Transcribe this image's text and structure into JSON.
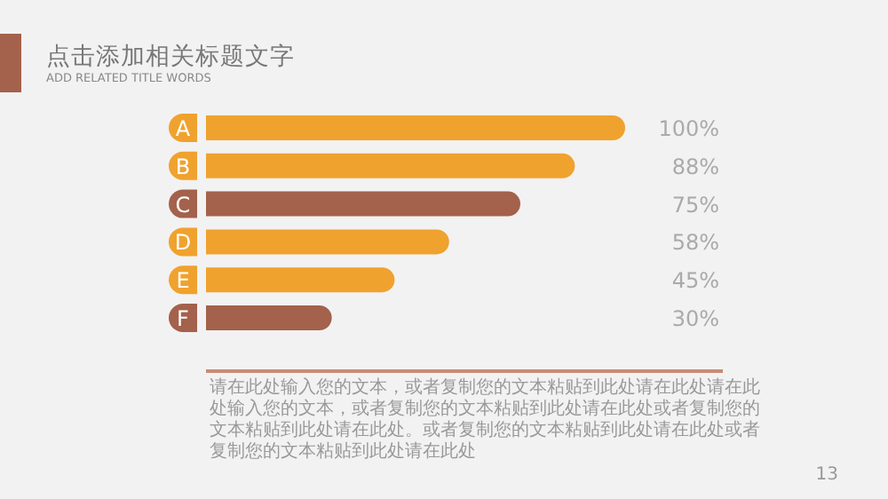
{
  "chart_data": {
    "type": "bar",
    "orientation": "horizontal",
    "title": "点击添加相关标题文字",
    "subtitle": "ADD RELATED TITLE WORDS",
    "categories": [
      "A",
      "B",
      "C",
      "D",
      "E",
      "F"
    ],
    "values": [
      100,
      88,
      75,
      58,
      45,
      30
    ],
    "colors": [
      "#f0a22e",
      "#f0a22e",
      "#a4614b",
      "#f0a22e",
      "#f0a22e",
      "#a4614b"
    ],
    "value_labels": [
      "100%",
      "88%",
      "75%",
      "58%",
      "45%",
      "30%"
    ],
    "annotations": [
      "请在此处输入您的文本，或者复制您的文本粘贴到此处请在此处请在此处输入您的文本，或者复制您的文本粘贴到此处请在此处或者复制您的文本粘贴到此处请在此处。或者复制您的文本粘贴到此处请在此处或者复制您的文本粘贴到此处请在此处",
      "13"
    ]
  }
}
